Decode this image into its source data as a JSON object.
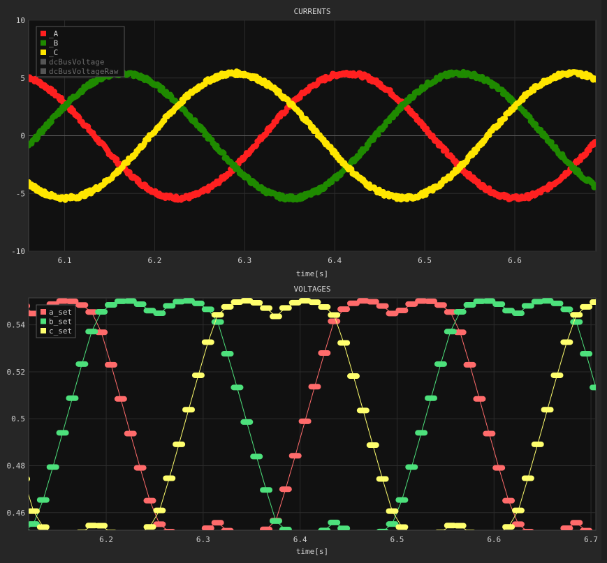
{
  "chart_data": [
    {
      "type": "scatter",
      "title": "CURRENTS",
      "xlabel": "time[s]",
      "ylabel": "",
      "xlim": [
        6.06,
        6.69
      ],
      "ylim": [
        -10,
        10
      ],
      "x_ticks": [
        "6.1",
        "6.2",
        "6.3",
        "6.4",
        "6.5",
        "6.6"
      ],
      "y_ticks": [
        "10",
        "5",
        "0",
        "-5",
        "-10"
      ],
      "grid": true,
      "legend_position": "top-left",
      "series": [
        {
          "name": "_A",
          "color": "#ff2020",
          "enabled": true,
          "model": {
            "amp": 5.4,
            "period": 0.375,
            "phase_deg": 110
          }
        },
        {
          "name": "_B",
          "color": "#1f8a00",
          "enabled": true,
          "model": {
            "amp": 5.4,
            "period": 0.375,
            "phase_deg": -10
          }
        },
        {
          "name": "_C",
          "color": "#ffe600",
          "enabled": true,
          "model": {
            "amp": 5.4,
            "period": 0.375,
            "phase_deg": 230
          }
        },
        {
          "name": "dcBusVoltage",
          "color": "#555555",
          "enabled": false
        },
        {
          "name": "dcBusVoltageRaw",
          "color": "#555555",
          "enabled": false
        }
      ],
      "x_range": [
        6.06,
        6.69
      ]
    },
    {
      "type": "line",
      "title": "VOLTAGES",
      "xlabel": "time[s]",
      "ylabel": "",
      "xlim": [
        6.12,
        6.705
      ],
      "ylim": [
        0.4525,
        0.5515
      ],
      "x_ticks": [
        "6.2",
        "6.3",
        "6.4",
        "6.5",
        "6.6",
        "6.7"
      ],
      "y_ticks": [
        "0.54",
        "0.52",
        "0.5",
        "0.48",
        "0.46"
      ],
      "grid": true,
      "legend_position": "top-left",
      "series": [
        {
          "name": "a_set",
          "color": "#ff6b6b",
          "model": {
            "period": 0.37,
            "phase_deg": 82
          }
        },
        {
          "name": "b_set",
          "color": "#4de17c",
          "model": {
            "period": 0.37,
            "phase_deg": -38
          }
        },
        {
          "name": "c_set",
          "color": "#ffff6e",
          "model": {
            "period": 0.37,
            "phase_deg": 202
          }
        }
      ]
    }
  ]
}
